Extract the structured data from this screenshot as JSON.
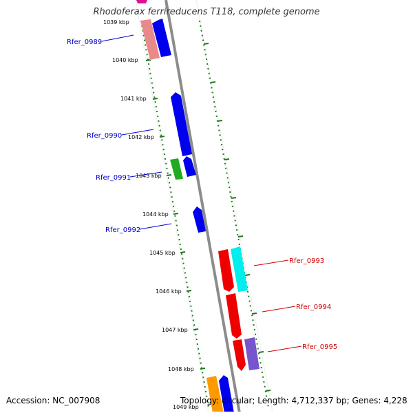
{
  "title": "Rhodoferax ferrireducens T118, complete genome",
  "accession": "Accession: NC_007908",
  "topology": "Topology: circular; Length: 4,712,337 bp; Genes: 4,228",
  "kbp_labels": [
    "1039 kbp",
    "1040 kbp",
    "1041 kbp",
    "1042 kbp",
    "1043 kbp",
    "1044 kbp",
    "1045 kbp",
    "1046 kbp",
    "1047 kbp",
    "1048 kbp",
    "1049 kbp"
  ],
  "genes_left": [
    {
      "name": "Rfer_0989",
      "color": "#0000cc"
    },
    {
      "name": "Rfer_0990",
      "color": "#0000cc"
    },
    {
      "name": "Rfer_0991",
      "color": "#0000cc"
    },
    {
      "name": "Rfer_0992",
      "color": "#0000cc"
    }
  ],
  "genes_right": [
    {
      "name": "Rfer_0993",
      "color": "#cc0000"
    },
    {
      "name": "Rfer_0994",
      "color": "#cc0000"
    },
    {
      "name": "Rfer_0995",
      "color": "#cc0000"
    }
  ],
  "colors": {
    "backbone": "#8c8c8c",
    "tick": "#1a7a1a",
    "blue": "#0000ee",
    "red": "#ee0000",
    "cyan": "#00eeee",
    "green": "#22aa22",
    "pink": "#e88a8a",
    "purple": "#7755cc",
    "orange": "#ff9900",
    "magenta": "#dd1199"
  }
}
